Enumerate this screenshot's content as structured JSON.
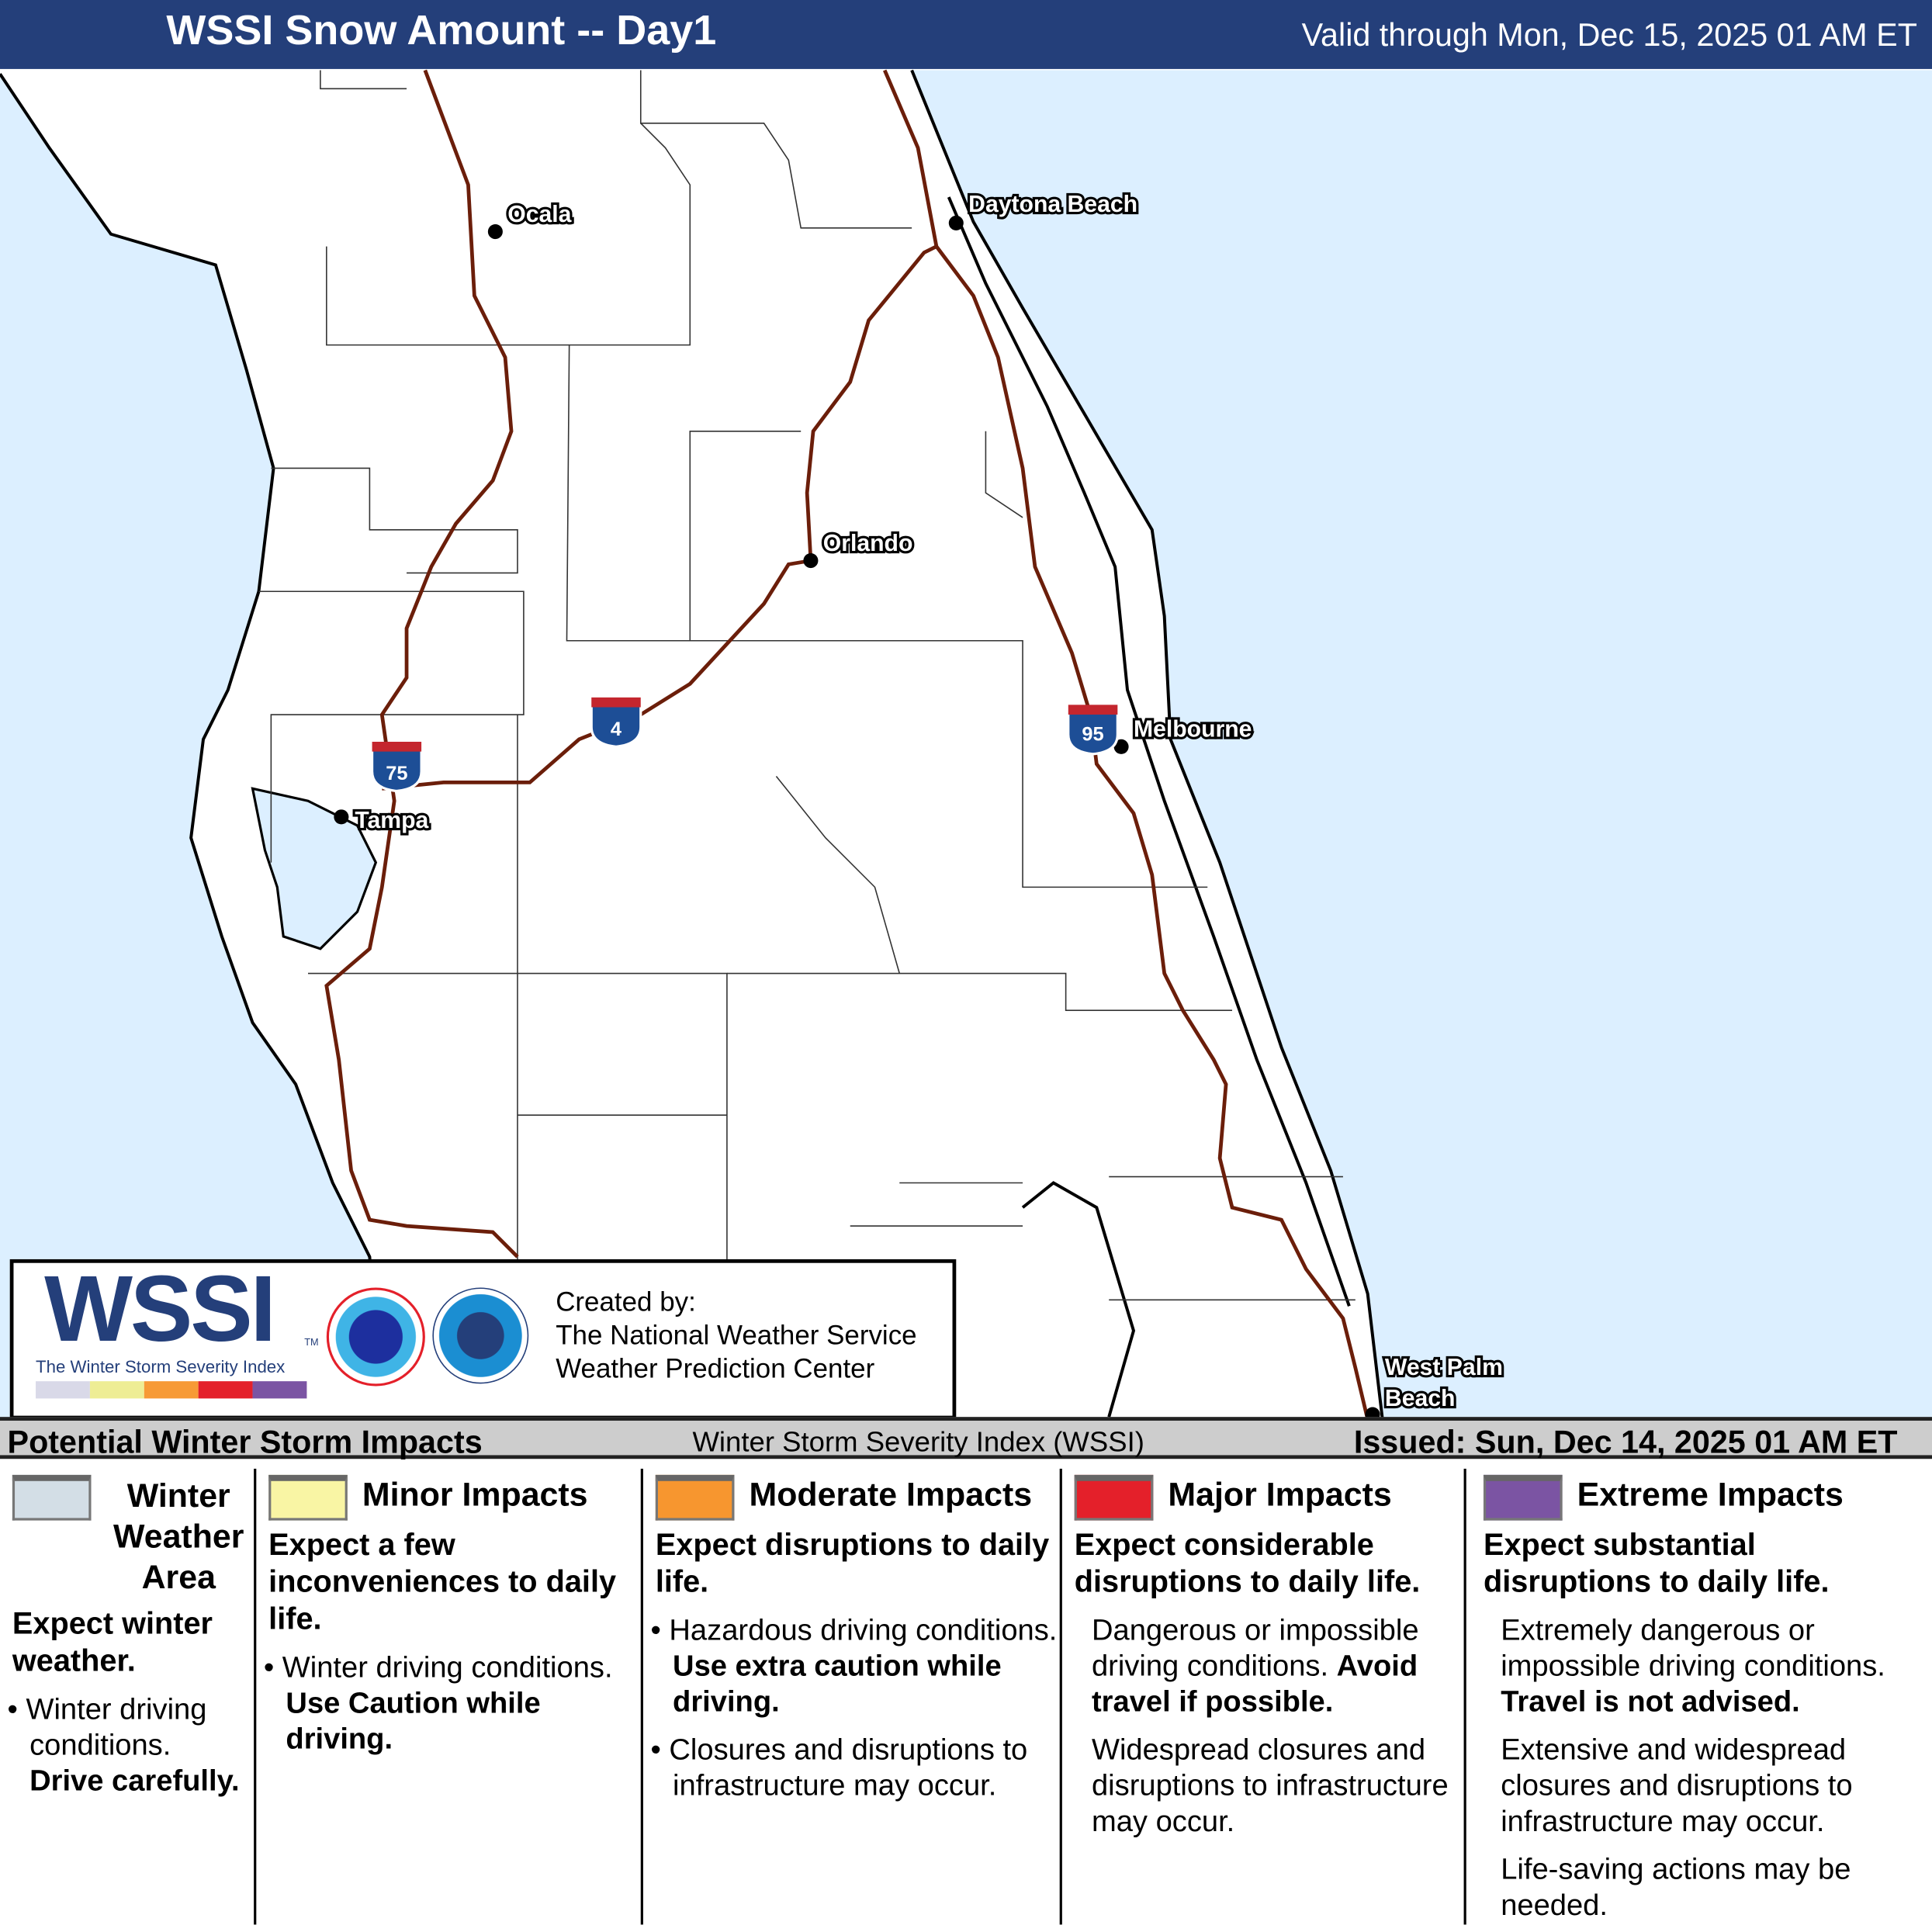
{
  "header": {
    "title": "WSSI Snow Amount -- Day1",
    "valid": "Valid through Mon, Dec 15, 2025 01 AM ET"
  },
  "map": {
    "colors": {
      "ocean": "#dcefff",
      "land": "#ffffff",
      "highway": "#6b1e0a"
    },
    "cities": [
      {
        "name": "Ocala"
      },
      {
        "name": "Daytona Beach"
      },
      {
        "name": "Orlando"
      },
      {
        "name": "Melbourne"
      },
      {
        "name": "Tampa"
      },
      {
        "name": "West Palm"
      },
      {
        "name": "Beach"
      }
    ],
    "interstates": [
      "75",
      "4",
      "95"
    ]
  },
  "logo": {
    "wssi": "WSSI",
    "tm": "TM",
    "subtitle": "The Winter Storm Severity Index",
    "colors": [
      "#d9d9e8",
      "#eeed95",
      "#f79a36",
      "#e4202a",
      "#7b54a3"
    ],
    "nws_seal": "NATIONAL WEATHER SERVICE",
    "noaa_seal": "NOAA",
    "created_by": "Created by:",
    "org1": "The National Weather Service",
    "org2": "Weather Prediction Center"
  },
  "legend": {
    "title": "Potential Winter Storm Impacts",
    "index_name": "Winter Storm Severity Index (WSSI)",
    "issued": "Issued: Sun, Dec 14, 2025 01 AM ET",
    "columns": [
      {
        "color": "#d3dee6",
        "name_lines": [
          "Winter",
          "Weather",
          "Area"
        ],
        "summary": "Expect winter weather.",
        "bullet": "Winter driving conditions.",
        "bullet_bold": "Drive carefully."
      },
      {
        "color": "#f9f5a4",
        "name": "Minor Impacts",
        "summary": "Expect a few inconveniences to daily life.",
        "bullet": "Winter driving conditions.",
        "bullet_bold": "Use Caution while driving."
      },
      {
        "color": "#f7962f",
        "name": "Moderate Impacts",
        "summary": "Expect disruptions to daily life.",
        "bullet": "Hazardous driving conditions.",
        "bullet_bold": "Use extra caution while driving.",
        "bullet2": "Closures and disruptions to infrastructure may occur."
      },
      {
        "color": "#e4202a",
        "name": "Major Impacts",
        "summary": "Expect considerable disruptions to daily life.",
        "p1": "Dangerous or impossible driving conditions.",
        "p1_bold": "Avoid travel if possible.",
        "p2": "Widespread closures and disruptions to infrastructure may occur."
      },
      {
        "color": "#7b54a3",
        "name": "Extreme Impacts",
        "summary": "Expect substantial disruptions to daily life.",
        "p1": "Extremely dangerous or impossible driving conditions.",
        "p1_bold": "Travel is not advised.",
        "p2": "Extensive and widespread closures and disruptions to infrastructure may occur.",
        "p3": "Life-saving actions may be needed."
      }
    ]
  }
}
